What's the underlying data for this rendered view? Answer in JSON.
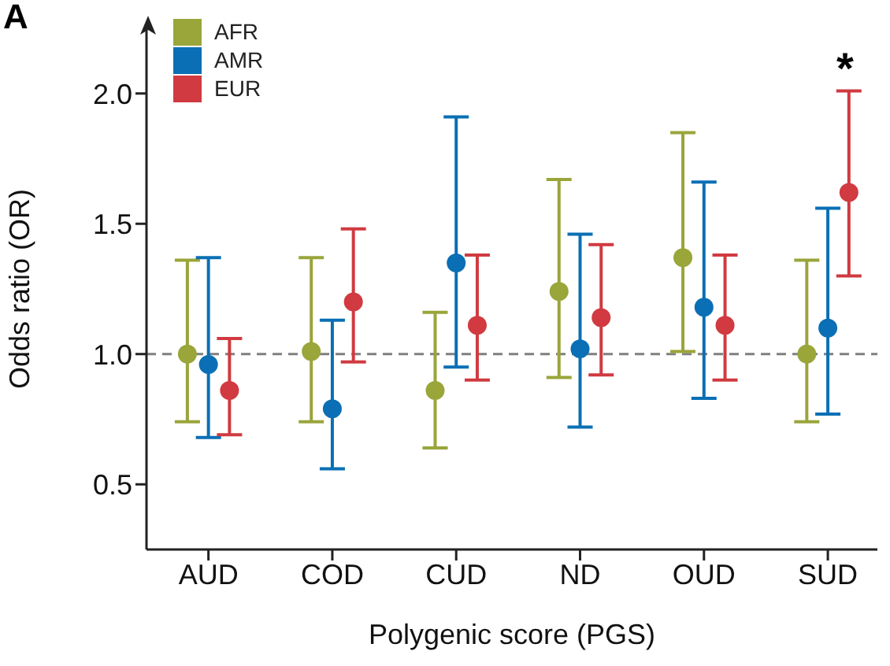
{
  "chart_data": {
    "type": "scatter",
    "title": "A",
    "xlabel": "Polygenic score (PGS)",
    "ylabel": "Odds ratio (OR)",
    "categories": [
      "AUD",
      "COD",
      "CUD",
      "ND",
      "OUD",
      "SUD"
    ],
    "series": [
      {
        "name": "AFR",
        "color": "#9aa53a",
        "values": [
          1.0,
          1.01,
          0.86,
          1.24,
          1.37,
          1.0
        ],
        "errors": [
          [
            0.74,
            1.36
          ],
          [
            0.74,
            1.37
          ],
          [
            0.64,
            1.16
          ],
          [
            0.91,
            1.67
          ],
          [
            1.01,
            1.85
          ],
          [
            0.74,
            1.36
          ]
        ]
      },
      {
        "name": "AMR",
        "color": "#0a6fb4",
        "values": [
          0.96,
          0.79,
          1.35,
          1.02,
          1.18,
          1.1
        ],
        "errors": [
          [
            0.68,
            1.37
          ],
          [
            0.56,
            1.13
          ],
          [
            0.95,
            1.91
          ],
          [
            0.72,
            1.46
          ],
          [
            0.83,
            1.66
          ],
          [
            0.77,
            1.56
          ]
        ]
      },
      {
        "name": "EUR",
        "color": "#d03a40",
        "values": [
          0.86,
          1.2,
          1.11,
          1.14,
          1.11,
          1.62
        ],
        "errors": [
          [
            0.69,
            1.06
          ],
          [
            0.97,
            1.48
          ],
          [
            0.9,
            1.38
          ],
          [
            0.92,
            1.42
          ],
          [
            0.9,
            1.38
          ],
          [
            1.3,
            2.01
          ]
        ]
      }
    ],
    "ylim": [
      0.25,
      2.25
    ],
    "yticks": [
      0.5,
      {
        "value": 1,
        "label": "1.0"
      },
      1.5,
      {
        "value": 2,
        "label": "2.0"
      }
    ],
    "ref_lines": [
      {
        "axis": "y",
        "value": 1.0,
        "color": "#808080",
        "line_style": "dashed"
      }
    ],
    "annotations": [
      "*"
    ],
    "marker": "circle",
    "grid": false,
    "legend": "top left"
  }
}
